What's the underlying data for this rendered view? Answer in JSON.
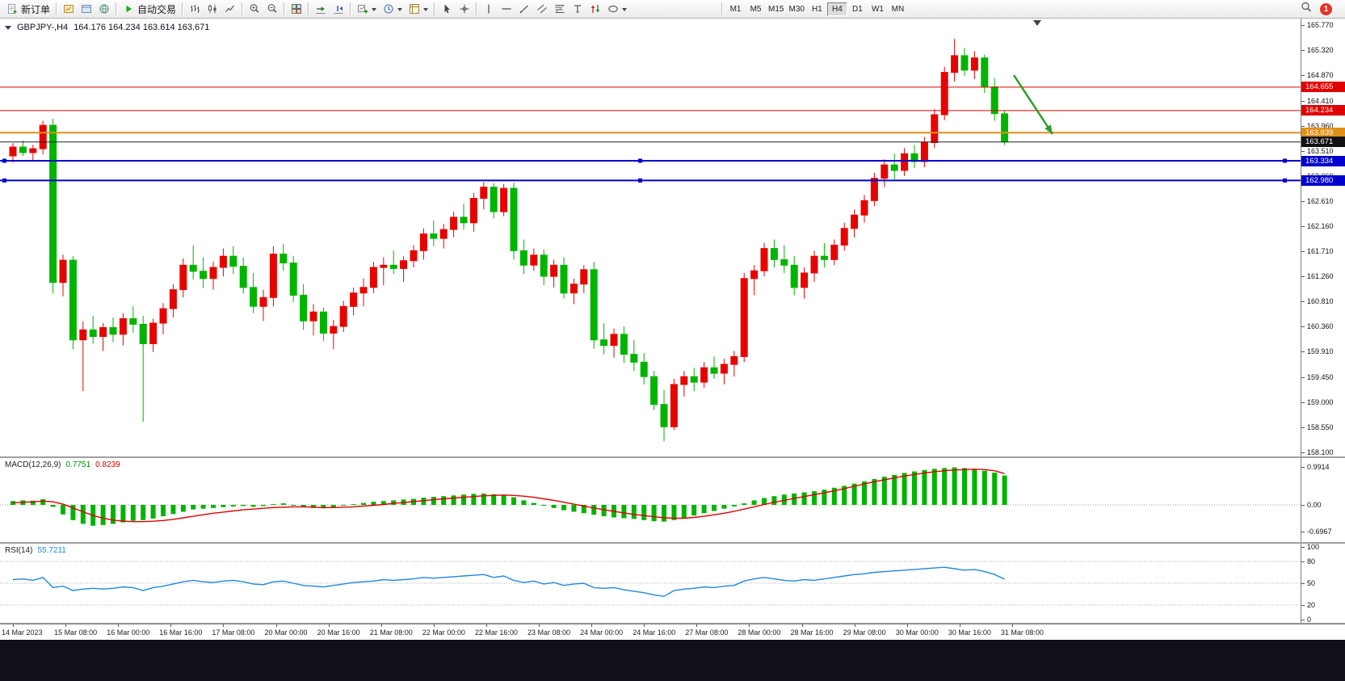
{
  "toolbar": {
    "new_order_label": "新订单",
    "autotrading_label": "自动交易",
    "icon_groups": [
      [
        "market-watch",
        "data-window",
        "globe"
      ],
      [
        "bar-chart",
        "candlestick-chart",
        "line-chart"
      ],
      [
        "zoom-in",
        "zoom-out"
      ],
      [
        "tile-windows"
      ],
      [
        "auto-scroll",
        "chart-shift"
      ],
      [
        "new-chart",
        "periods",
        "templates"
      ],
      [
        "cursor",
        "crosshair"
      ],
      [
        "vertical-line",
        "horizontal-line",
        "trend-line",
        "channel",
        "fibonacci",
        "text-tool",
        "arrow-tool",
        "shapes"
      ]
    ],
    "dropdown_items": [
      "new-chart",
      "periods",
      "templates",
      "shapes"
    ],
    "timeframes": [
      "M1",
      "M5",
      "M15",
      "M30",
      "H1",
      "H4",
      "D1",
      "W1",
      "MN"
    ],
    "active_timeframe": "H4",
    "right_icons": [
      "search"
    ],
    "notification_count": "1"
  },
  "chart": {
    "symbol_period": "GBPJPY-,H4",
    "ohlc": "164.176 164.234 163.614 163.671",
    "price_axis_labels": [
      "165.770",
      "165.320",
      "164.870",
      "164.410",
      "163.960",
      "163.510",
      "163.060",
      "162.610",
      "162.160",
      "161.710",
      "161.260",
      "160.810",
      "160.360",
      "159.910",
      "159.450",
      "159.000",
      "158.550",
      "158.100"
    ],
    "price_range": {
      "top": 165.77,
      "bottom": 158.1
    },
    "hlines": [
      {
        "price": 164.655,
        "label": "164.655",
        "color": "#e00000",
        "width": 1,
        "badge": true
      },
      {
        "price": 164.234,
        "label": "164.234",
        "color": "#e00000",
        "width": 1,
        "badge": true
      },
      {
        "price": 163.839,
        "label": "163.839",
        "color": "#e09018",
        "width": 2,
        "badge": true
      },
      {
        "price": 163.671,
        "label": "163.671",
        "color": "#222222",
        "width": 1,
        "badge": true,
        "badge_color": "#111111",
        "role": "bid"
      },
      {
        "price": 163.334,
        "label": "163.334",
        "color": "#0000cc",
        "width": 2,
        "badge": true,
        "selected": true
      },
      {
        "price": 162.98,
        "label": "162.980",
        "color": "#0000cc",
        "width": 2,
        "badge": true,
        "selected": true
      }
    ],
    "time_axis_labels": [
      "14 Mar 2023",
      "15 Mar 08:00",
      "16 Mar 00:00",
      "16 Mar 16:00",
      "17 Mar 08:00",
      "20 Mar 00:00",
      "20 Mar 16:00",
      "21 Mar 08:00",
      "22 Mar 00:00",
      "22 Mar 16:00",
      "23 Mar 08:00",
      "24 Mar 00:00",
      "24 Mar 16:00",
      "27 Mar 08:00",
      "28 Mar 00:00",
      "28 Mar 16:00",
      "29 Mar 08:00",
      "30 Mar 00:00",
      "30 Mar 16:00",
      "31 Mar 08:00"
    ],
    "annotation_arrow_color": "#2f9e2f",
    "up_color": "#e60400",
    "down_color": "#00b400"
  },
  "chart_data": {
    "type": "candlestick",
    "symbol": "GBPJPY-",
    "timeframe": "H4",
    "ylim": [
      158.1,
      165.77
    ],
    "candles_ohlc": [
      [
        163.42,
        163.65,
        163.3,
        163.58
      ],
      [
        163.58,
        163.7,
        163.42,
        163.48
      ],
      [
        163.48,
        163.62,
        163.32,
        163.55
      ],
      [
        163.55,
        164.05,
        163.45,
        163.97
      ],
      [
        163.97,
        164.09,
        160.95,
        161.15
      ],
      [
        161.15,
        161.65,
        160.9,
        161.55
      ],
      [
        161.55,
        161.62,
        159.95,
        160.12
      ],
      [
        160.12,
        160.45,
        159.2,
        160.3
      ],
      [
        160.3,
        160.55,
        160.05,
        160.18
      ],
      [
        160.18,
        160.42,
        159.92,
        160.34
      ],
      [
        160.34,
        160.52,
        160.08,
        160.22
      ],
      [
        160.22,
        160.6,
        160.02,
        160.5
      ],
      [
        160.5,
        160.72,
        160.25,
        160.4
      ],
      [
        160.4,
        160.55,
        158.65,
        160.05
      ],
      [
        160.05,
        160.5,
        159.9,
        160.42
      ],
      [
        160.42,
        160.78,
        160.22,
        160.68
      ],
      [
        160.68,
        161.12,
        160.52,
        161.02
      ],
      [
        161.02,
        161.58,
        160.88,
        161.46
      ],
      [
        161.46,
        161.82,
        161.2,
        161.35
      ],
      [
        161.35,
        161.6,
        161.05,
        161.22
      ],
      [
        161.22,
        161.52,
        161.02,
        161.42
      ],
      [
        161.42,
        161.76,
        161.26,
        161.62
      ],
      [
        161.62,
        161.8,
        161.3,
        161.44
      ],
      [
        161.44,
        161.6,
        160.95,
        161.06
      ],
      [
        161.06,
        161.32,
        160.6,
        160.72
      ],
      [
        160.72,
        161.02,
        160.46,
        160.88
      ],
      [
        160.88,
        161.8,
        160.72,
        161.66
      ],
      [
        161.66,
        161.84,
        161.36,
        161.5
      ],
      [
        161.5,
        161.62,
        160.8,
        160.92
      ],
      [
        160.92,
        161.12,
        160.3,
        160.46
      ],
      [
        160.46,
        160.76,
        160.2,
        160.62
      ],
      [
        160.62,
        160.7,
        160.1,
        160.24
      ],
      [
        160.24,
        160.48,
        159.95,
        160.36
      ],
      [
        160.36,
        160.82,
        160.26,
        160.72
      ],
      [
        160.72,
        161.06,
        160.56,
        160.96
      ],
      [
        160.96,
        161.22,
        160.72,
        161.06
      ],
      [
        161.06,
        161.52,
        160.96,
        161.42
      ],
      [
        161.42,
        161.6,
        161.1,
        161.46
      ],
      [
        161.46,
        161.72,
        161.3,
        161.4
      ],
      [
        161.4,
        161.62,
        161.16,
        161.54
      ],
      [
        161.54,
        161.82,
        161.42,
        161.72
      ],
      [
        161.72,
        162.12,
        161.56,
        162.02
      ],
      [
        162.02,
        162.26,
        161.8,
        161.94
      ],
      [
        161.94,
        162.2,
        161.76,
        162.1
      ],
      [
        162.1,
        162.42,
        161.96,
        162.32
      ],
      [
        162.32,
        162.56,
        162.1,
        162.22
      ],
      [
        162.22,
        162.76,
        162.06,
        162.66
      ],
      [
        162.66,
        162.95,
        162.46,
        162.86
      ],
      [
        162.86,
        162.93,
        162.3,
        162.42
      ],
      [
        162.42,
        162.92,
        162.34,
        162.84
      ],
      [
        162.84,
        162.94,
        161.56,
        161.72
      ],
      [
        161.72,
        161.92,
        161.3,
        161.46
      ],
      [
        161.46,
        161.76,
        161.36,
        161.64
      ],
      [
        161.64,
        161.74,
        161.1,
        161.26
      ],
      [
        161.26,
        161.56,
        161.06,
        161.46
      ],
      [
        161.46,
        161.6,
        160.86,
        160.96
      ],
      [
        160.96,
        161.22,
        160.76,
        161.12
      ],
      [
        161.12,
        161.46,
        160.96,
        161.38
      ],
      [
        161.38,
        161.52,
        159.96,
        160.12
      ],
      [
        160.12,
        160.42,
        159.86,
        160.02
      ],
      [
        160.02,
        160.32,
        159.8,
        160.22
      ],
      [
        160.22,
        160.36,
        159.7,
        159.86
      ],
      [
        159.86,
        160.12,
        159.56,
        159.72
      ],
      [
        159.72,
        159.88,
        159.32,
        159.46
      ],
      [
        159.46,
        159.56,
        158.86,
        158.96
      ],
      [
        158.96,
        159.22,
        158.3,
        158.56
      ],
      [
        158.56,
        159.42,
        158.5,
        159.32
      ],
      [
        159.32,
        159.56,
        159.1,
        159.46
      ],
      [
        159.46,
        159.62,
        159.2,
        159.36
      ],
      [
        159.36,
        159.72,
        159.26,
        159.62
      ],
      [
        159.62,
        159.82,
        159.42,
        159.52
      ],
      [
        159.52,
        159.78,
        159.32,
        159.68
      ],
      [
        159.68,
        159.92,
        159.46,
        159.82
      ],
      [
        159.82,
        161.32,
        159.72,
        161.22
      ],
      [
        161.22,
        161.46,
        160.92,
        161.36
      ],
      [
        161.36,
        161.86,
        161.26,
        161.76
      ],
      [
        161.76,
        161.92,
        161.42,
        161.56
      ],
      [
        161.56,
        161.82,
        161.32,
        161.46
      ],
      [
        161.46,
        161.62,
        160.92,
        161.06
      ],
      [
        161.06,
        161.42,
        160.86,
        161.32
      ],
      [
        161.32,
        161.72,
        161.16,
        161.62
      ],
      [
        161.62,
        161.86,
        161.42,
        161.56
      ],
      [
        161.56,
        161.92,
        161.46,
        161.82
      ],
      [
        161.82,
        162.22,
        161.72,
        162.12
      ],
      [
        162.12,
        162.46,
        161.96,
        162.36
      ],
      [
        162.36,
        162.72,
        162.22,
        162.62
      ],
      [
        162.62,
        163.12,
        162.52,
        163.02
      ],
      [
        163.02,
        163.36,
        162.86,
        163.26
      ],
      [
        163.26,
        163.46,
        163.0,
        163.16
      ],
      [
        163.16,
        163.56,
        163.06,
        163.46
      ],
      [
        163.46,
        163.62,
        163.2,
        163.32
      ],
      [
        163.32,
        163.76,
        163.22,
        163.66
      ],
      [
        163.66,
        164.26,
        163.56,
        164.16
      ],
      [
        164.16,
        165.02,
        164.06,
        164.92
      ],
      [
        164.92,
        165.52,
        164.76,
        165.22
      ],
      [
        165.22,
        165.36,
        164.86,
        164.96
      ],
      [
        164.96,
        165.3,
        164.8,
        165.18
      ],
      [
        165.18,
        165.24,
        164.55,
        164.66
      ],
      [
        164.66,
        164.82,
        164.05,
        164.18
      ],
      [
        164.176,
        164.234,
        163.614,
        163.671
      ]
    ],
    "macd": {
      "title": "MACD(12,26,9)",
      "value_main": "0.7751",
      "value_signal": "0.8239",
      "axis_labels": [
        "0.9914",
        "0.00",
        "-0.6967"
      ],
      "axis_values": [
        0.9914,
        0,
        -0.6967
      ],
      "histogram_color": "#00b400",
      "signal_color": "#e00000",
      "histogram": [
        0.1,
        0.12,
        0.11,
        0.15,
        -0.05,
        -0.25,
        -0.4,
        -0.5,
        -0.55,
        -0.53,
        -0.5,
        -0.46,
        -0.42,
        -0.4,
        -0.36,
        -0.3,
        -0.24,
        -0.18,
        -0.12,
        -0.1,
        -0.08,
        -0.06,
        -0.04,
        -0.03,
        -0.05,
        -0.03,
        0.02,
        0.04,
        -0.02,
        -0.06,
        -0.08,
        -0.09,
        -0.06,
        -0.02,
        0.02,
        0.05,
        0.08,
        0.1,
        0.12,
        0.14,
        0.16,
        0.19,
        0.21,
        0.23,
        0.25,
        0.27,
        0.29,
        0.3,
        0.28,
        0.26,
        0.2,
        0.12,
        0.05,
        -0.02,
        -0.08,
        -0.14,
        -0.18,
        -0.22,
        -0.26,
        -0.3,
        -0.33,
        -0.35,
        -0.37,
        -0.4,
        -0.43,
        -0.44,
        -0.4,
        -0.34,
        -0.28,
        -0.22,
        -0.16,
        -0.1,
        -0.04,
        0.04,
        0.12,
        0.18,
        0.23,
        0.27,
        0.3,
        0.33,
        0.36,
        0.4,
        0.45,
        0.5,
        0.56,
        0.62,
        0.68,
        0.74,
        0.79,
        0.84,
        0.88,
        0.92,
        0.95,
        0.97,
        0.99,
        0.97,
        0.94,
        0.9,
        0.85,
        0.7751
      ],
      "signal": [
        0.05,
        0.07,
        0.08,
        0.1,
        0.08,
        0.02,
        -0.08,
        -0.18,
        -0.28,
        -0.35,
        -0.4,
        -0.43,
        -0.44,
        -0.44,
        -0.43,
        -0.41,
        -0.38,
        -0.34,
        -0.3,
        -0.26,
        -0.22,
        -0.19,
        -0.16,
        -0.13,
        -0.11,
        -0.09,
        -0.07,
        -0.06,
        -0.05,
        -0.05,
        -0.06,
        -0.07,
        -0.07,
        -0.06,
        -0.05,
        -0.03,
        -0.01,
        0.01,
        0.04,
        0.06,
        0.09,
        0.11,
        0.14,
        0.16,
        0.18,
        0.2,
        0.22,
        0.24,
        0.25,
        0.26,
        0.25,
        0.23,
        0.2,
        0.16,
        0.12,
        0.07,
        0.02,
        -0.03,
        -0.08,
        -0.13,
        -0.17,
        -0.21,
        -0.25,
        -0.28,
        -0.31,
        -0.34,
        -0.35,
        -0.35,
        -0.33,
        -0.3,
        -0.26,
        -0.22,
        -0.17,
        -0.11,
        -0.05,
        0.01,
        0.07,
        0.12,
        0.17,
        0.22,
        0.27,
        0.32,
        0.37,
        0.43,
        0.49,
        0.55,
        0.61,
        0.66,
        0.71,
        0.76,
        0.8,
        0.84,
        0.87,
        0.9,
        0.92,
        0.93,
        0.94,
        0.93,
        0.9,
        0.8239
      ]
    },
    "rsi": {
      "title": "RSI(14)",
      "value": "55.7211",
      "axis_labels": [
        "100",
        "80",
        "50",
        "20",
        "0"
      ],
      "axis_values": [
        100,
        80,
        50,
        20,
        0
      ],
      "levels": [
        80,
        50,
        20
      ],
      "line_color": "#2288dd",
      "values": [
        55,
        56,
        54,
        58,
        44,
        46,
        40,
        42,
        43,
        42,
        43,
        45,
        44,
        40,
        44,
        46,
        49,
        52,
        54,
        52,
        51,
        53,
        54,
        52,
        49,
        48,
        52,
        53,
        50,
        47,
        46,
        45,
        47,
        49,
        51,
        52,
        53,
        55,
        54,
        55,
        56,
        58,
        57,
        58,
        59,
        60,
        61,
        62,
        58,
        60,
        54,
        51,
        53,
        49,
        51,
        47,
        49,
        50,
        44,
        43,
        44,
        41,
        39,
        37,
        34,
        32,
        40,
        42,
        43,
        45,
        44,
        46,
        47,
        53,
        56,
        58,
        56,
        54,
        53,
        55,
        54,
        56,
        58,
        60,
        62,
        63,
        65,
        66,
        67,
        68,
        69,
        70,
        71,
        72,
        70,
        68,
        69,
        66,
        62,
        55.72
      ]
    }
  }
}
